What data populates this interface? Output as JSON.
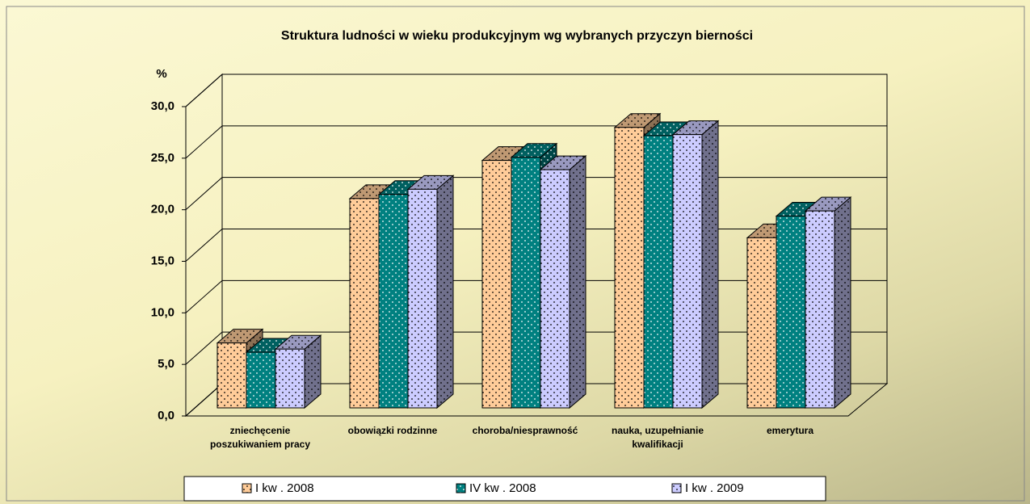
{
  "chart_data": {
    "type": "bar3d",
    "title": "Struktura ludności w wieku produkcyjnym wg wybranych przyczyn bierności",
    "ylabel": "%",
    "categories": [
      "zniechęcenie poszukiwaniem pracy",
      "obowiązki rodzinne",
      "choroba/niesprawność",
      "nauka, uzupełnianie kwalifikacji",
      "emerytura"
    ],
    "series": [
      {
        "name": "I kw . 2008",
        "color": "#ffcc99",
        "values": [
          6.3,
          20.3,
          24.0,
          27.2,
          16.5
        ]
      },
      {
        "name": "IV kw . 2008",
        "color": "#008080",
        "values": [
          5.4,
          20.7,
          24.3,
          26.4,
          18.6
        ]
      },
      {
        "name": "I kw . 2009",
        "color": "#ccccff",
        "values": [
          5.7,
          21.2,
          23.1,
          26.5,
          19.1
        ]
      }
    ],
    "ylim": [
      0,
      30
    ],
    "yticks": [
      {
        "value": 0,
        "label": "0,0"
      },
      {
        "value": 5,
        "label": "5,0"
      },
      {
        "value": 10,
        "label": "10,0"
      },
      {
        "value": 15,
        "label": "15,0"
      },
      {
        "value": 20,
        "label": "20,0"
      },
      {
        "value": 25,
        "label": "25,0"
      },
      {
        "value": 30,
        "label": "30,0"
      }
    ],
    "grid": true,
    "legend": "bottom"
  }
}
